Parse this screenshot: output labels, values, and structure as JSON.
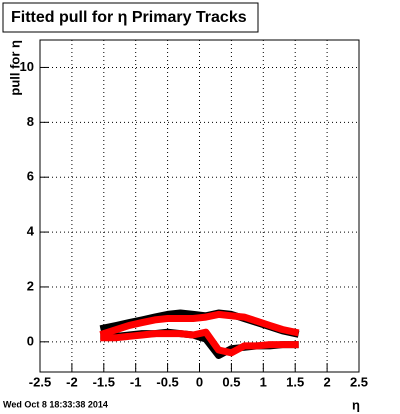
{
  "chart_data": {
    "type": "line",
    "title": "Fitted pull for  η  Primary Tracks",
    "y_label": "pull for η",
    "x_label": "η",
    "footer": "Wed Oct  8 18:33:38 2014",
    "x": [
      -1.5,
      -1.3,
      -1.1,
      -0.9,
      -0.7,
      -0.5,
      -0.3,
      -0.1,
      0.1,
      0.3,
      0.5,
      0.7,
      0.9,
      1.1,
      1.3,
      1.5
    ],
    "series": [
      {
        "color": "#000000",
        "values": [
          0.5,
          0.6,
          0.7,
          0.8,
          0.9,
          1.0,
          1.05,
          1.0,
          0.95,
          1.05,
          1.0,
          0.85,
          0.7,
          0.55,
          0.4,
          0.3
        ]
      },
      {
        "color": "#000000",
        "values": [
          0.2,
          0.2,
          0.25,
          0.3,
          0.3,
          0.35,
          0.3,
          0.25,
          0.1,
          -0.5,
          -0.25,
          -0.2,
          -0.15,
          -0.15,
          -0.1,
          -0.1
        ]
      },
      {
        "color": "#ff0000",
        "values": [
          0.3,
          0.45,
          0.6,
          0.7,
          0.8,
          0.85,
          0.85,
          0.85,
          0.9,
          1.0,
          0.95,
          0.9,
          0.75,
          0.6,
          0.45,
          0.35
        ]
      },
      {
        "color": "#ff0000",
        "values": [
          0.15,
          0.15,
          0.2,
          0.25,
          0.3,
          0.3,
          0.3,
          0.25,
          0.35,
          -0.3,
          -0.4,
          -0.15,
          -0.15,
          -0.1,
          -0.1,
          -0.1
        ]
      }
    ],
    "xlim": [
      -2.5,
      2.5
    ],
    "xticks": [
      -2.5,
      -2,
      -1.5,
      -1,
      -0.5,
      0,
      0.5,
      1,
      1.5,
      2,
      2.5
    ],
    "ylim": [
      -1.1,
      11.0
    ],
    "yticks": [
      0,
      2,
      4,
      6,
      8,
      10
    ],
    "grid": true
  }
}
